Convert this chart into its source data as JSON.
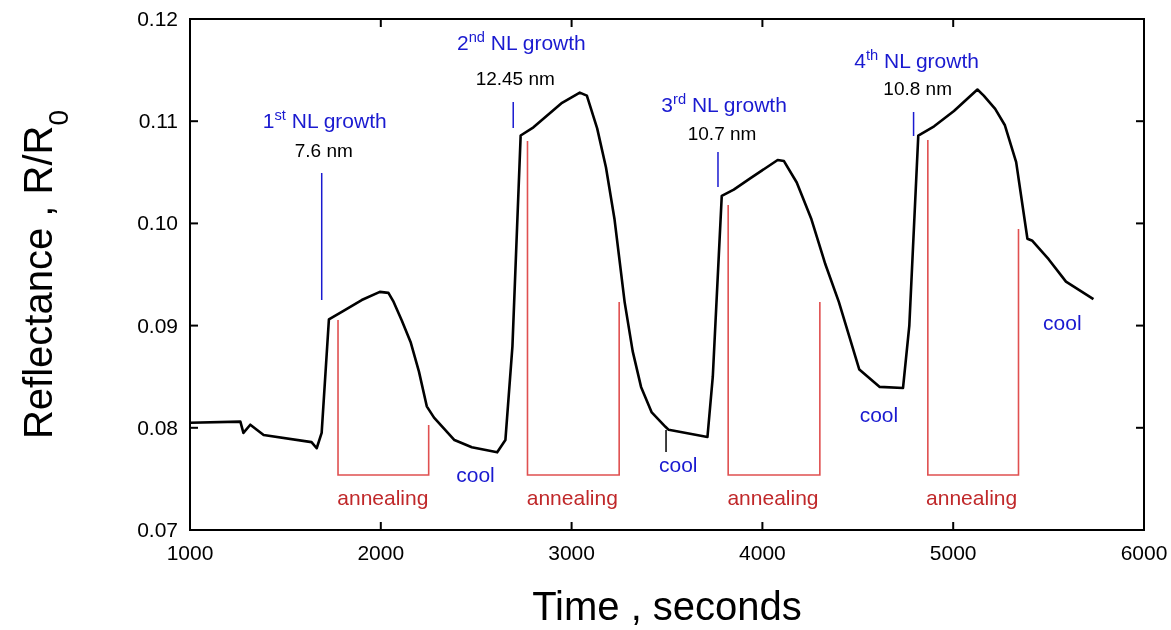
{
  "chart_data": {
    "type": "line",
    "xlabel": "Time , seconds",
    "ylabel": "Reflectance , R/R$_{0}$",
    "xlim": [
      1000,
      6000
    ],
    "xticks": [
      1000,
      2000,
      3000,
      4000,
      5000,
      6000
    ],
    "ylim": [
      0.07,
      0.12
    ],
    "yticks": [
      0.07,
      0.08,
      0.09,
      {
        "value": 0.1,
        "label": "0.10"
      },
      0.11,
      0.12
    ],
    "marker": "none",
    "line_style": "solid",
    "series": [
      {
        "color": "#000000",
        "x": [
          1000,
          1264,
          1280,
          1316,
          1386,
          1637,
          1664,
          1690,
          1728,
          1800,
          1900,
          1995,
          2040,
          2065,
          2110,
          2156,
          2200,
          2241,
          2279,
          2386,
          2477,
          2610,
          2653,
          2690,
          2733,
          2800,
          2950,
          3043,
          3080,
          3134,
          3180,
          3225,
          3278,
          3320,
          3364,
          3420,
          3492,
          3509,
          3712,
          3740,
          3787,
          3850,
          3936,
          4080,
          4113,
          4180,
          4257,
          4330,
          4401,
          4508,
          4615,
          4737,
          4770,
          4817,
          4900,
          5004,
          5127,
          5160,
          5220,
          5271,
          5330,
          5389,
          5415,
          5500,
          5591,
          5735
        ],
        "values": [
          0.0805,
          0.0806,
          0.0795,
          0.0803,
          0.0793,
          0.0786,
          0.078,
          0.0795,
          0.0906,
          0.0914,
          0.0925,
          0.0933,
          0.0932,
          0.0924,
          0.0905,
          0.0884,
          0.0855,
          0.0821,
          0.081,
          0.0788,
          0.0781,
          0.0776,
          0.0788,
          0.088,
          0.1086,
          0.1094,
          0.1118,
          0.1128,
          0.1125,
          0.1093,
          0.1055,
          0.1004,
          0.0923,
          0.0875,
          0.084,
          0.0815,
          0.0801,
          0.0798,
          0.0791,
          0.085,
          0.1027,
          0.1033,
          0.1044,
          0.1062,
          0.1061,
          0.104,
          0.1004,
          0.096,
          0.0923,
          0.0857,
          0.084,
          0.0839,
          0.09,
          0.1086,
          0.1095,
          0.111,
          0.1131,
          0.1125,
          0.1112,
          0.1096,
          0.106,
          0.0985,
          0.0983,
          0.0965,
          0.0943,
          0.0926
        ]
      }
    ],
    "annotations": [
      "1$^{st}$ NL growth\n7.6 nm",
      "annealing",
      "cool",
      "2$^{nd}$ NL growth\n12.45 nm",
      "annealing",
      "cool",
      "3$^{rd}$ NL growth\n10.7 nm",
      "annealing",
      "cool",
      "4$^{th}$ NL growth\n10.8 nm",
      "annealing",
      "cool"
    ]
  }
}
